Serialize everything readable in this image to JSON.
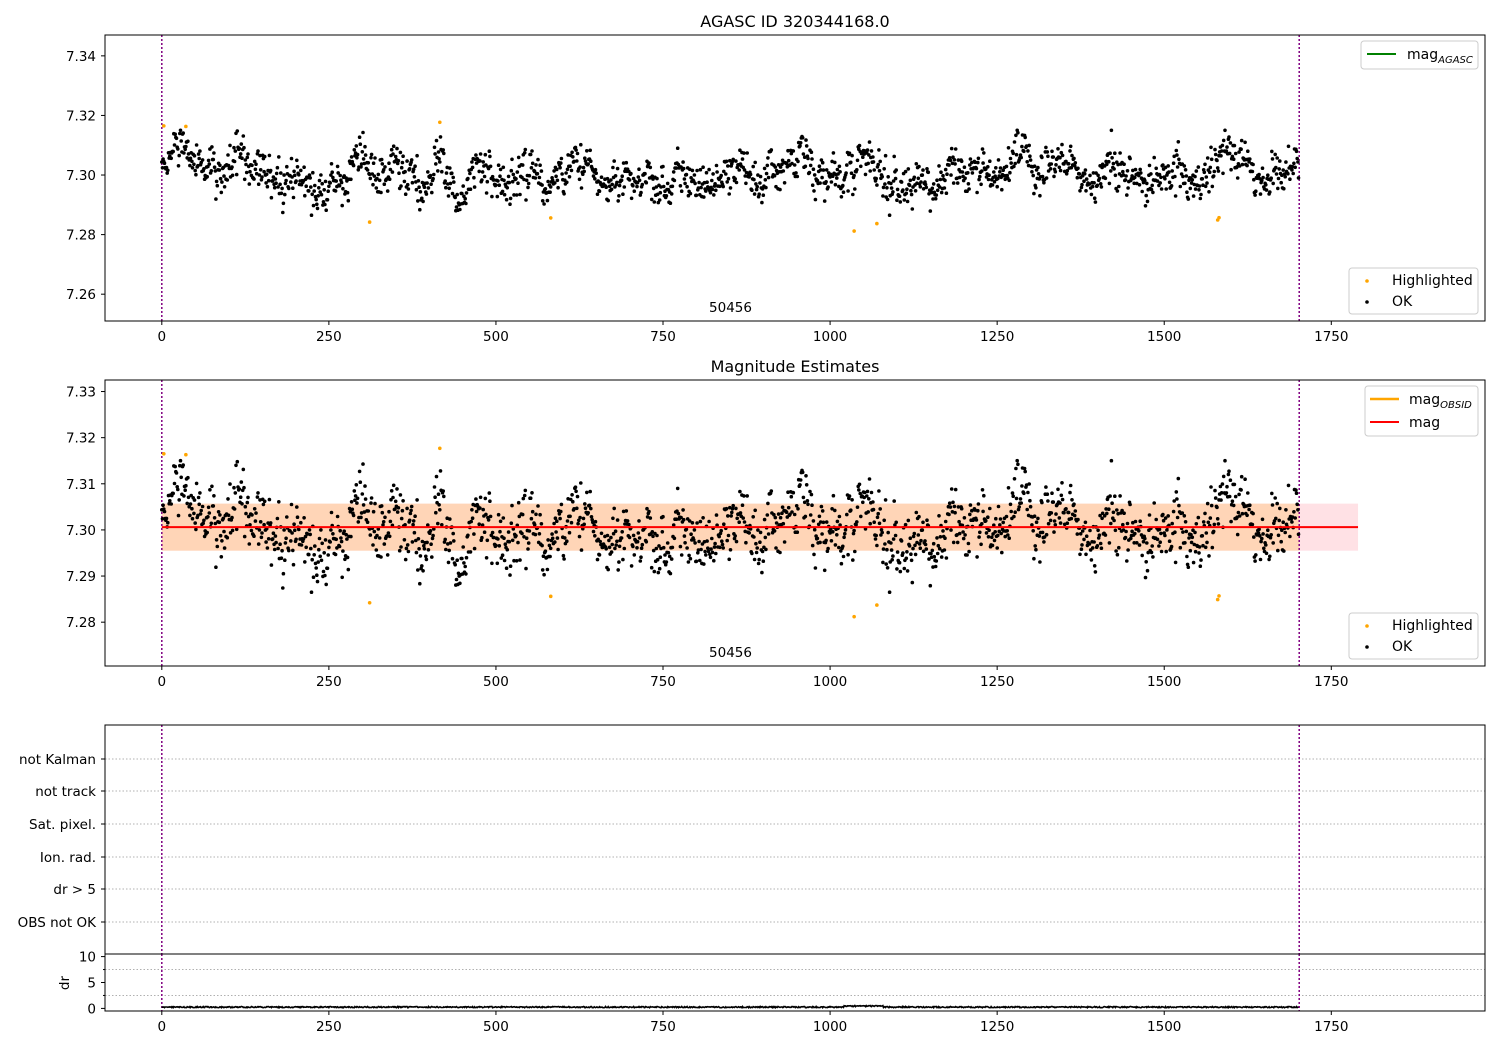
{
  "chart_data": [
    {
      "type": "scatter",
      "title": "AGASC ID 320344168.0",
      "xlim": [
        -85,
        1980
      ],
      "ylim": [
        7.251,
        7.347
      ],
      "xticks": [
        0,
        250,
        500,
        750,
        1000,
        1250,
        1500,
        1750
      ],
      "yticks": [
        7.26,
        7.28,
        7.3,
        7.32,
        7.34
      ],
      "ytick_labels": [
        "7.26",
        "7.28",
        "7.30",
        "7.32",
        "7.34"
      ],
      "vlines": [
        0,
        1702
      ],
      "vline_color": "#800080",
      "annotation": {
        "text": "50456",
        "x": 851
      },
      "series": [
        {
          "name": "Highlighted",
          "color": "#ffa500",
          "x": [
            3,
            36,
            311,
            416,
            582,
            1036,
            1070,
            1580,
            1582
          ],
          "y": [
            7.3165,
            7.3163,
            7.2842,
            7.3177,
            7.2856,
            7.2812,
            7.2837,
            7.2849,
            7.2857
          ]
        },
        {
          "name": "OK",
          "color": "#000000",
          "n_points": 1702,
          "y_center": 7.3005,
          "y_spread": 0.0056
        }
      ],
      "lines": [
        {
          "name": "mag<sub>AGASC</sub>",
          "label_main": "mag",
          "label_sub": "AGASC",
          "color": "#008000"
        }
      ],
      "legend_upper": "top-right",
      "legend_lower": "bottom-right"
    },
    {
      "type": "scatter",
      "title": "Magnitude Estimates",
      "xlim": [
        -85,
        1980
      ],
      "ylim": [
        7.2705,
        7.3325
      ],
      "xticks": [
        0,
        250,
        500,
        750,
        1000,
        1250,
        1500,
        1750
      ],
      "yticks": [
        7.28,
        7.29,
        7.3,
        7.31,
        7.32,
        7.33
      ],
      "ytick_labels": [
        "7.28",
        "7.29",
        "7.30",
        "7.31",
        "7.32",
        "7.33"
      ],
      "vlines": [
        0,
        1702
      ],
      "vline_color": "#800080",
      "annotation": {
        "text": "50456",
        "x": 851
      },
      "band_obsid": {
        "x": [
          0,
          1702
        ],
        "y": [
          7.2955,
          7.3057
        ],
        "color": "#ffa500"
      },
      "band_mag": {
        "x": [
          0,
          1790
        ],
        "y": [
          7.2955,
          7.3057
        ],
        "color": "#ff9aa8"
      },
      "mag_line": {
        "x": [
          0,
          1790
        ],
        "y": 7.3006,
        "color": "#ff0000"
      },
      "series": [
        {
          "name": "Highlighted",
          "color": "#ffa500",
          "x": [
            3,
            36,
            311,
            416,
            582,
            1036,
            1070,
            1580,
            1582
          ],
          "y": [
            7.3165,
            7.3163,
            7.2842,
            7.3177,
            7.2856,
            7.2812,
            7.2837,
            7.2849,
            7.2857
          ]
        },
        {
          "name": "OK",
          "color": "#000000",
          "n_points": 1702,
          "y_center": 7.3005,
          "y_spread": 0.0056
        }
      ],
      "lines": [
        {
          "label_main": "mag",
          "label_sub": "OBSID",
          "color": "#ffa500"
        },
        {
          "label_main": "mag",
          "label_sub": "",
          "color": "#ff0000"
        }
      ],
      "legend_upper": "top-right",
      "legend_lower": "bottom-right"
    },
    {
      "type": "scatter",
      "xlim": [
        -85,
        1980
      ],
      "flag_labels": [
        "not Kalman",
        "not track",
        "Sat. pixel.",
        "Ion. rad.",
        "dr > 5",
        "OBS not OK"
      ],
      "vlines": [
        0,
        1702
      ],
      "vline_color": "#800080",
      "grid": true
    },
    {
      "type": "line",
      "ylabel": "dr",
      "xlim": [
        -85,
        1980
      ],
      "ylim": [
        -0.5,
        10.5
      ],
      "xticks": [
        0,
        250,
        500,
        750,
        1000,
        1250,
        1500,
        1750
      ],
      "yticks": [
        0,
        5,
        10
      ],
      "ytick_labels": [
        "0",
        "5",
        "10"
      ],
      "vlines": [
        0,
        1702
      ],
      "vline_color": "#800080",
      "series": [
        {
          "color": "#000000",
          "n_points": 1702,
          "y_center": 0.25,
          "y_spread": 0.12
        }
      ]
    }
  ]
}
